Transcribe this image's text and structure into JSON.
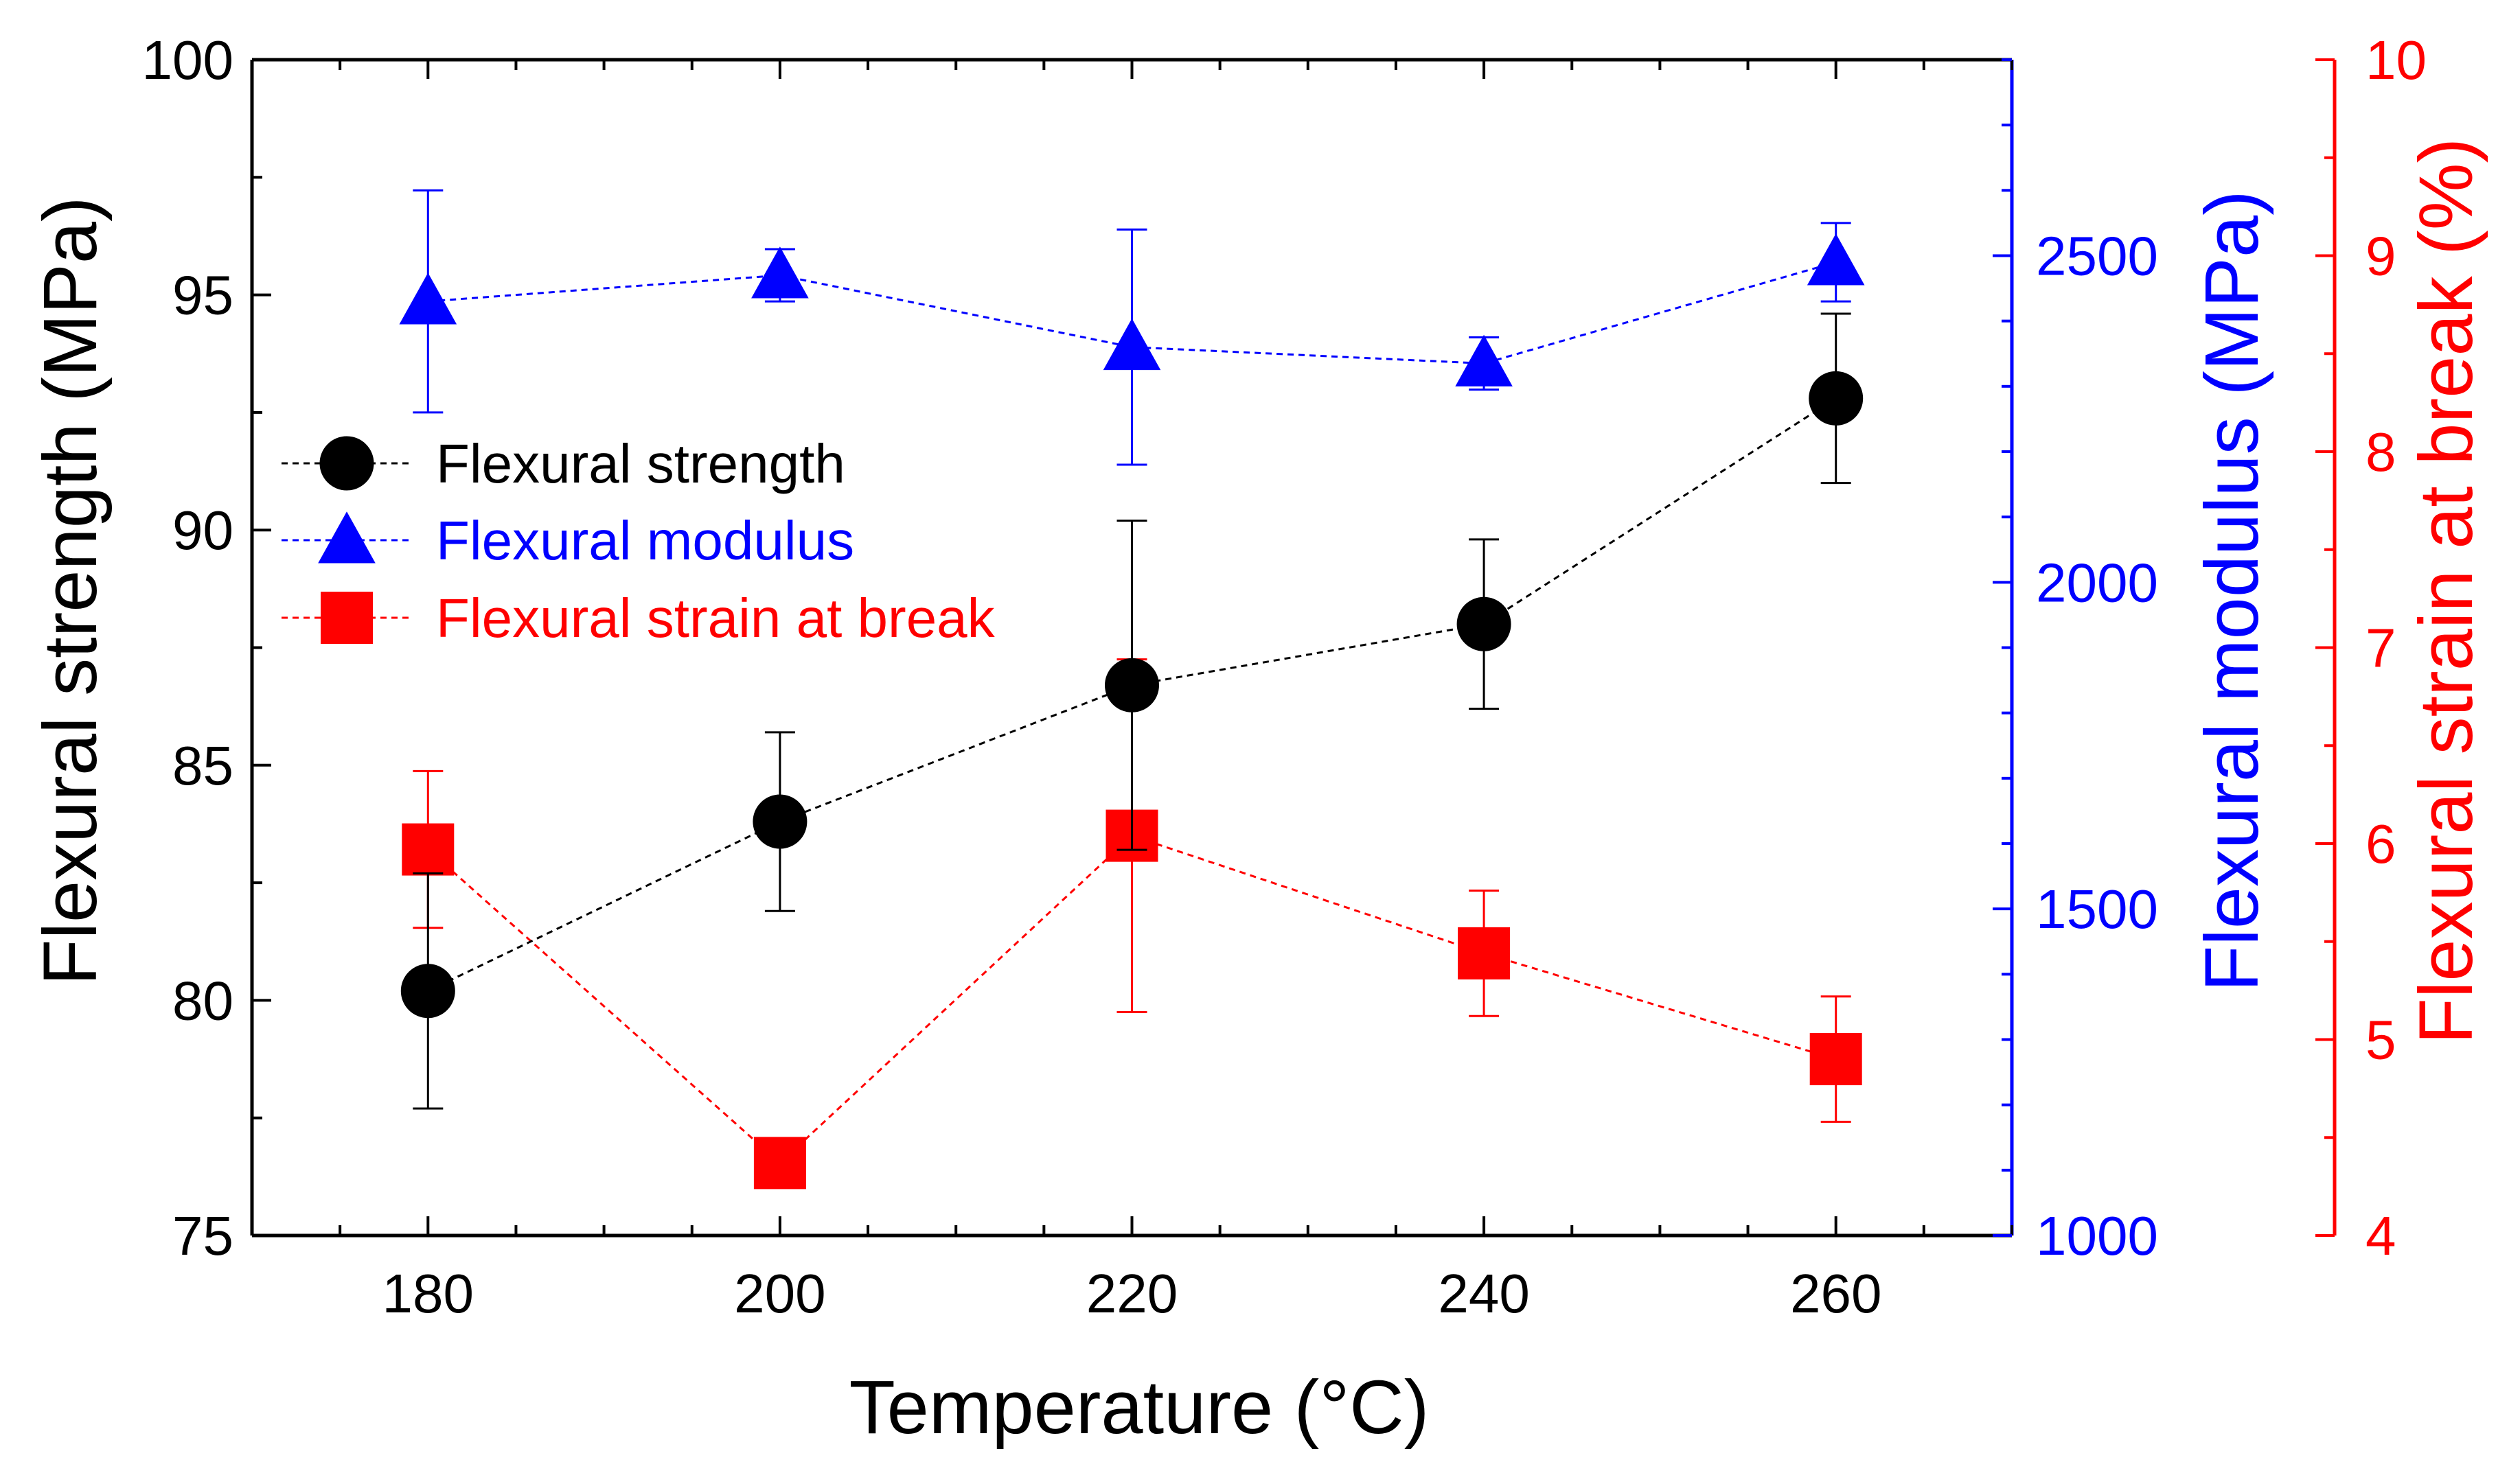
{
  "chart_data": {
    "type": "line",
    "x": [
      180,
      200,
      220,
      240,
      260
    ],
    "xlabel": "Temperature (°C)",
    "xlim": [
      170,
      270
    ],
    "xticks": [
      180,
      200,
      220,
      240,
      260
    ],
    "axes": {
      "left": {
        "label": "Flexural strength (MPa)",
        "ylim": [
          75,
          100
        ],
        "ticks": [
          75,
          80,
          85,
          90,
          95,
          100
        ],
        "color": "#000000"
      },
      "right1": {
        "label": "Flexural modulus (MPa)",
        "ylim": [
          1000,
          2800
        ],
        "ticks": [
          1000,
          1500,
          2000,
          2500
        ],
        "color": "#0000ff"
      },
      "right2": {
        "label": "Flexural strain at break (%)",
        "ylim": [
          4,
          10
        ],
        "ticks": [
          4,
          5,
          6,
          7,
          8,
          9,
          10
        ],
        "color": "#ff0000"
      }
    },
    "series": [
      {
        "name": "Flexural strength",
        "axis": "left",
        "marker": "circle",
        "color": "#000000",
        "values": [
          80.2,
          83.8,
          86.7,
          88.0,
          92.8
        ],
        "errors": [
          2.5,
          1.9,
          3.5,
          1.8,
          1.8
        ]
      },
      {
        "name": "Flexural modulus",
        "axis": "right1",
        "marker": "triangle",
        "color": "#0000ff",
        "values": [
          2430,
          2470,
          2360,
          2335,
          2490
        ],
        "errors": [
          170,
          40,
          180,
          40,
          60
        ]
      },
      {
        "name": "Flexural strain at break",
        "axis": "right2",
        "marker": "square",
        "color": "#ff0000",
        "values": [
          5.97,
          4.37,
          6.04,
          5.44,
          4.9
        ],
        "errors": [
          0.4,
          0.07,
          0.9,
          0.32,
          0.32
        ]
      }
    ],
    "legend": "upper-left"
  }
}
